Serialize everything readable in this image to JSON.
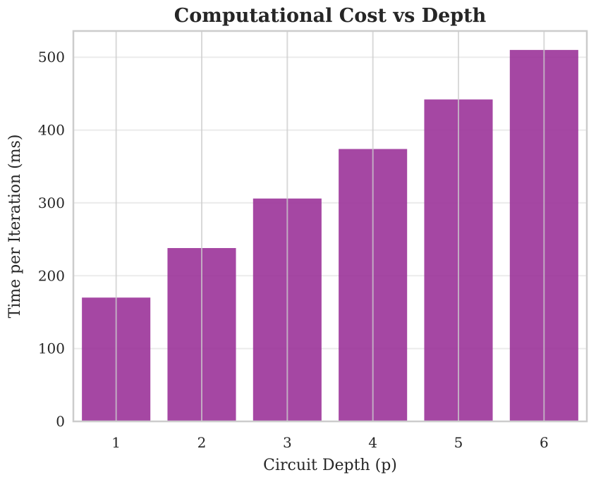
{
  "chart_data": {
    "type": "bar",
    "title": "Computational Cost vs Depth",
    "xlabel": "Circuit Depth (p)",
    "ylabel": "Time per Iteration (ms)",
    "categories": [
      "1",
      "2",
      "3",
      "4",
      "5",
      "6"
    ],
    "values": [
      170,
      238,
      306,
      374,
      442,
      510
    ],
    "ylim": [
      0,
      536
    ],
    "yticks": [
      0,
      100,
      200,
      300,
      400,
      500
    ],
    "grid": true,
    "legend": "none",
    "colors": {
      "bar": "#9b3399",
      "grid_major": "#cccccc",
      "grid_minor": "#ebebeb",
      "frame": "#cccccc",
      "text": "#262626"
    }
  }
}
